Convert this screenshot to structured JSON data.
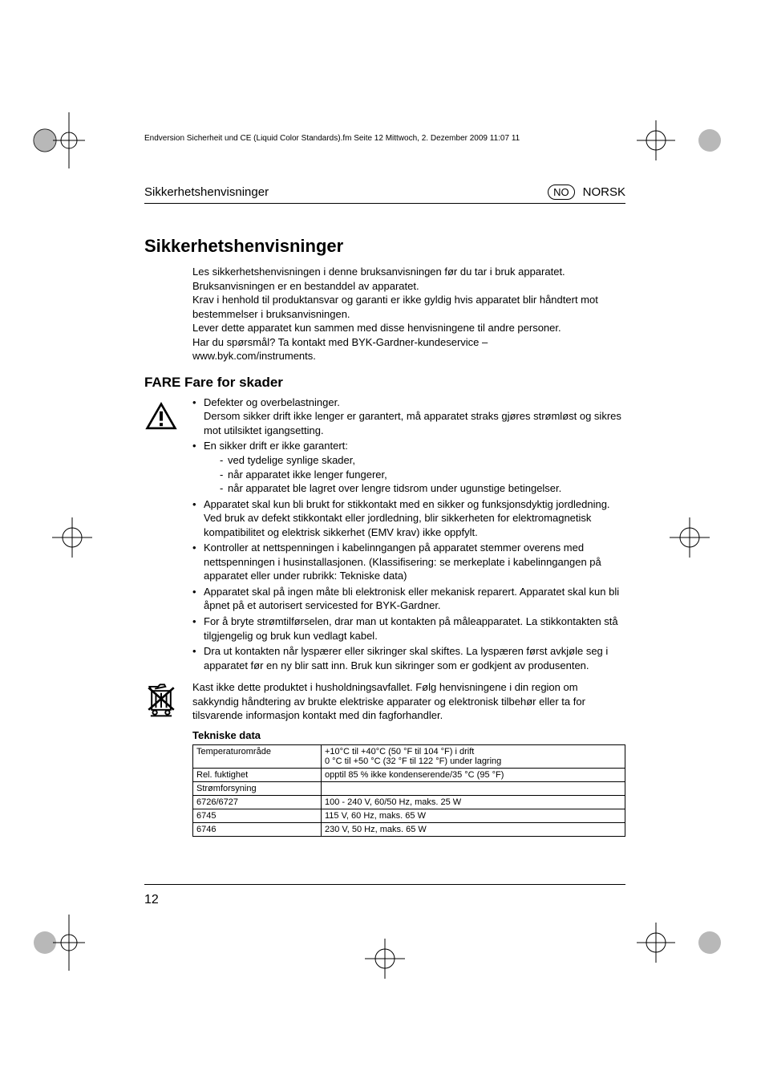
{
  "meta_line": "Endversion Sicherheit und CE (Liquid Color Standards).fm  Seite 12  Mittwoch, 2. Dezember 2009  11:07 11",
  "header": {
    "left": "Sikkerhetshenvisninger",
    "lang_code": "NO",
    "lang_name": "NORSK"
  },
  "title": "Sikkerhetshenvisninger",
  "intro": [
    "Les sikkerhetshenvisningen i denne bruksanvisningen før du tar i bruk apparatet. Bruksanvisningen er en bestanddel av apparatet.",
    "Krav i henhold til produktansvar og garanti er ikke gyldig hvis apparatet blir håndtert mot bestemmelser i bruksanvisningen.",
    "Lever dette apparatet kun sammen med disse henvisningene til andre personer.",
    "Har du spørsmål? Ta kontakt med BYK-Gardner-kundeservice –",
    "www.byk.com/instruments."
  ],
  "subtitle": "FARE Fare for skader",
  "bullets": [
    {
      "text": "Defekter og overbelastninger.",
      "after": "Dersom sikker drift ikke lenger er garantert, må apparatet straks gjøres strømløst og sikres mot utilsiktet igangsetting."
    },
    {
      "text": "En sikker drift er ikke garantert:",
      "sub": [
        "ved tydelige synlige skader,",
        "når apparatet ikke lenger fungerer,",
        "når apparatet ble lagret over lengre tidsrom under ugunstige betingelser."
      ]
    },
    {
      "text": "Apparatet skal kun bli brukt for stikkontakt med en sikker og funksjonsdyktig jordledning. Ved bruk av defekt stikkontakt eller jordledning, blir sikkerheten for elektromagnetisk kompatibilitet og elektrisk sikkerhet (EMV krav) ikke oppfylt."
    },
    {
      "text": "Kontroller at nettspenningen i kabelinngangen på apparatet stemmer overens med nettspenningen i husinstallasjonen. (Klassifisering: se merkeplate i kabelinngangen på apparatet eller under rubrikk: Tekniske data)"
    },
    {
      "text": "Apparatet skal på ingen måte bli elektronisk eller mekanisk reparert. Apparatet skal kun bli åpnet på et autorisert servicested for BYK-Gardner."
    },
    {
      "text": "For å bryte strømtilførselen, drar man ut kontakten på måleapparatet. La stikkontakten stå tilgjengelig og bruk kun vedlagt kabel."
    },
    {
      "text": "Dra ut kontakten når lyspærer eller sikringer skal skiftes. La lyspæren først avkjøle seg i apparatet før en ny blir satt inn. Bruk kun sikringer som er godkjent av produsenten."
    }
  ],
  "weee_text": "Kast ikke dette produktet i husholdningsavfallet. Følg henvisningene i din region om sakkyndig håndtering av brukte elektriske apparater og elektronisk tilbehør eller ta for tilsvarende informasjon kontakt med din fagforhandler.",
  "tech": {
    "title": "Tekniske data",
    "rows": [
      [
        "Temperaturområde",
        "+10°C til +40°C (50 °F til 104 °F) i drift\n0 °C til +50 °C (32 °F til 122 °F) under lagring"
      ],
      [
        "Rel. fuktighet",
        "opptil 85 % ikke kondenserende/35 °C (95 °F)"
      ],
      [
        "Strømforsyning",
        ""
      ],
      [
        "6726/6727",
        "100 - 240 V, 60/50 Hz, maks. 25 W"
      ],
      [
        "6745",
        "115 V, 60 Hz, maks. 65 W"
      ],
      [
        "6746",
        "230 V, 50 Hz, maks. 65 W"
      ]
    ]
  },
  "page_number": "12",
  "colors": {
    "text": "#000000",
    "bg": "#ffffff",
    "crop_fill": "#6a6a6a"
  }
}
